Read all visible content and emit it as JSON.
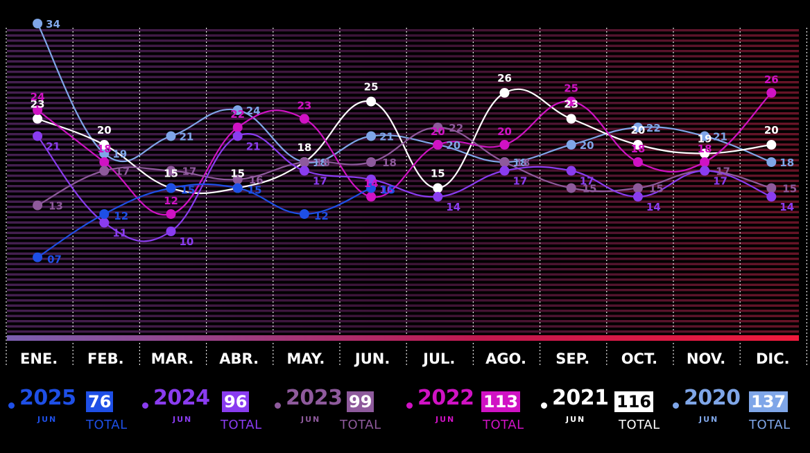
{
  "chart_data": {
    "type": "line",
    "categories": [
      "ENE.",
      "FEB.",
      "MAR.",
      "ABR.",
      "MAY.",
      "JUN.",
      "JUL.",
      "AGO.",
      "SEP.",
      "OCT.",
      "NOV.",
      "DIC."
    ],
    "ylim": [
      0,
      36
    ],
    "grid": true,
    "series": [
      {
        "name": "2020",
        "color": "#7fa6e8",
        "values": [
          34,
          19,
          21,
          24,
          18,
          21,
          20,
          18,
          20,
          22,
          21,
          18
        ]
      },
      {
        "name": "2021",
        "color": "#ffffff",
        "values": [
          23,
          20,
          15,
          15,
          18,
          25,
          15,
          26,
          23,
          20,
          19,
          20
        ]
      },
      {
        "name": "2022",
        "color": "#d012c4",
        "values": [
          24,
          18,
          12,
          22,
          23,
          14,
          20,
          20,
          25,
          18,
          18,
          26
        ]
      },
      {
        "name": "2023",
        "color": "#8e5a9c",
        "values": [
          13,
          17,
          17,
          16,
          18,
          18,
          22,
          18,
          15,
          15,
          17,
          15
        ]
      },
      {
        "name": "2024",
        "color": "#8a3cf0",
        "values": [
          21,
          11,
          10,
          21,
          17,
          16,
          14,
          17,
          17,
          14,
          17,
          14
        ]
      },
      {
        "name": "2025",
        "color": "#1e4fe6",
        "values": [
          7,
          12,
          15,
          15,
          12,
          15,
          null,
          null,
          null,
          null,
          null,
          null
        ]
      }
    ],
    "point_labels": {
      "2020": [
        "34",
        "19",
        "21",
        "24",
        "18",
        "21",
        "20",
        "18",
        "20",
        "22",
        "21",
        "18"
      ],
      "2021": [
        "23",
        "20",
        "15",
        "15",
        "18",
        "25",
        "15",
        "26",
        "23",
        "20",
        "19",
        "20"
      ],
      "2022": [
        "24",
        "18",
        "12",
        "22",
        "23",
        "14",
        "20",
        "20",
        "25",
        "18",
        "18",
        "26"
      ],
      "2023": [
        "13",
        "17",
        "17",
        "16",
        "18",
        "18",
        "22",
        "18",
        "15",
        "15",
        "17",
        "15"
      ],
      "2024": [
        "21",
        "11",
        "10",
        "21",
        "17",
        "16",
        "14",
        "17",
        "17",
        "14",
        "17",
        "14"
      ],
      "2025": [
        "07",
        "12",
        "15",
        "15",
        "12",
        "15",
        "",
        "",
        "",
        "",
        "",
        ""
      ]
    }
  },
  "legend": [
    {
      "year": "2025",
      "sub": "JUN",
      "total": "76",
      "total_label": "TOTAL",
      "color": "#1e4fe6"
    },
    {
      "year": "2024",
      "sub": "JUN",
      "total": "96",
      "total_label": "TOTAL",
      "color": "#8a3cf0"
    },
    {
      "year": "2023",
      "sub": "JUN",
      "total": "99",
      "total_label": "TOTAL",
      "color": "#8e5a9c"
    },
    {
      "year": "2022",
      "sub": "JUN",
      "total": "113",
      "total_label": "TOTAL",
      "color": "#d012c4"
    },
    {
      "year": "2021",
      "sub": "JUN",
      "total": "116",
      "total_label": "TOTAL",
      "color": "#ffffff"
    },
    {
      "year": "2020",
      "sub": "JUN",
      "total": "137",
      "total_label": "TOTAL",
      "color": "#7fa6e8"
    }
  ],
  "colors": {
    "axis_gradient_start": "#7a5fb0",
    "axis_gradient_end": "#e8183c",
    "background": "#000000"
  }
}
